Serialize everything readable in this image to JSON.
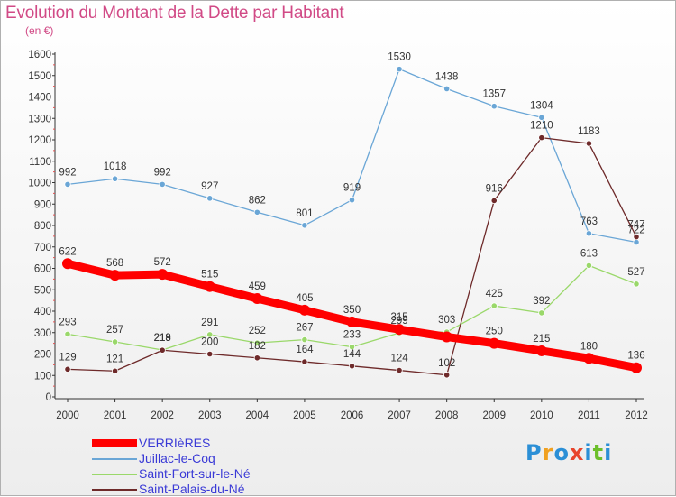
{
  "title": "Evolution du Montant de la Dette par Habitant",
  "subtitle": "(en €)",
  "logo": {
    "text": "Proxiti"
  },
  "legend": [
    {
      "name": "VERRIèRES",
      "color": "#ff0000"
    },
    {
      "name": "Juillac-le-Coq",
      "color": "#6aa6d6"
    },
    {
      "name": "Saint-Fort-sur-le-Né",
      "color": "#9ad86a"
    },
    {
      "name": "Saint-Palais-du-Né",
      "color": "#6e2a2a"
    }
  ],
  "chart_data": {
    "type": "line",
    "x": [
      "2000",
      "2001",
      "2002",
      "2003",
      "2004",
      "2005",
      "2006",
      "2007",
      "2008",
      "2009",
      "2010",
      "2011",
      "2012"
    ],
    "yticks": [
      0,
      100,
      200,
      300,
      400,
      500,
      600,
      700,
      800,
      900,
      1000,
      1100,
      1200,
      1300,
      1400,
      1500,
      1600
    ],
    "ylim": [
      0,
      1600
    ],
    "grid": false,
    "legend_position": "bottom-left",
    "series": [
      {
        "name": "VERRIèRES",
        "color": "#ff0000",
        "values": [
          622,
          568,
          572,
          515,
          459,
          405,
          350,
          315,
          280,
          250,
          215,
          180,
          136
        ],
        "labels": [
          "622",
          "568",
          "572",
          "515",
          "459",
          "405",
          "350",
          "315",
          "",
          "250",
          "215",
          "180",
          "136"
        ]
      },
      {
        "name": "Juillac-le-Coq",
        "color": "#6aa6d6",
        "values": [
          992,
          1018,
          992,
          927,
          862,
          801,
          919,
          1530,
          1438,
          1357,
          1304,
          763,
          722
        ],
        "labels": [
          "992",
          "1018",
          "992",
          "927",
          "862",
          "801",
          "919",
          "1530",
          "1438",
          "1357",
          "1304",
          "763",
          "722"
        ]
      },
      {
        "name": "Saint-Fort-sur-le-Né",
        "color": "#9ad86a",
        "values": [
          293,
          257,
          219,
          291,
          252,
          267,
          233,
          299,
          303,
          425,
          392,
          613,
          527
        ],
        "labels": [
          "293",
          "257",
          "219",
          "291",
          "252",
          "267",
          "233",
          "299",
          "303",
          "425",
          "392",
          "613",
          "527"
        ]
      },
      {
        "name": "Saint-Palais-du-Né",
        "color": "#6e2a2a",
        "values": [
          129,
          121,
          218,
          200,
          182,
          164,
          144,
          124,
          102,
          916,
          1210,
          1183,
          747
        ],
        "labels": [
          "129",
          "121",
          "218",
          "200",
          "182",
          "164",
          "144",
          "124",
          "102",
          "916",
          "1210",
          "1183",
          "747"
        ]
      }
    ]
  }
}
